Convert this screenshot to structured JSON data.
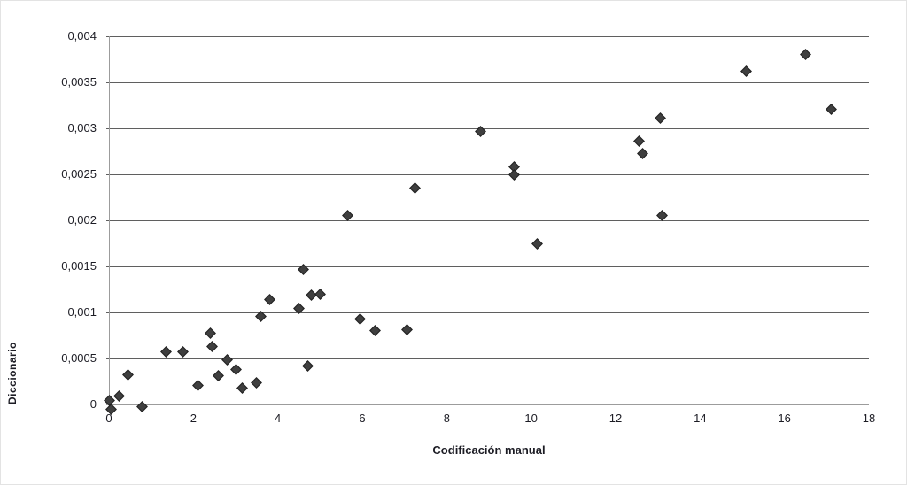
{
  "chart_data": {
    "type": "scatter",
    "title": "",
    "xlabel": "Codificación manual",
    "ylabel": "Diccionario",
    "xlim": [
      0,
      18
    ],
    "ylim": [
      0,
      0.004
    ],
    "x_ticks": [
      0,
      2,
      4,
      6,
      8,
      10,
      12,
      14,
      16,
      18
    ],
    "y_ticks": [
      {
        "value": 0,
        "label": "0"
      },
      {
        "value": 0.0005,
        "label": "0,0005"
      },
      {
        "value": 0.001,
        "label": "0,001"
      },
      {
        "value": 0.0015,
        "label": "0,0015"
      },
      {
        "value": 0.002,
        "label": "0,002"
      },
      {
        "value": 0.0025,
        "label": "0,0025"
      },
      {
        "value": 0.003,
        "label": "0,003"
      },
      {
        "value": 0.0035,
        "label": "0,0035"
      },
      {
        "value": 0.004,
        "label": "0,004"
      }
    ],
    "grid": "horizontal",
    "legend": false,
    "marker": "diamond",
    "marker_color": "#3f3f3f",
    "points": [
      [
        0.0,
        4e-05
      ],
      [
        0.05,
        -5e-05
      ],
      [
        0.25,
        9e-05
      ],
      [
        0.45,
        0.00032
      ],
      [
        0.78,
        -2e-05
      ],
      [
        1.35,
        0.00057
      ],
      [
        1.75,
        0.00057
      ],
      [
        2.1,
        0.00021
      ],
      [
        2.4,
        0.00077
      ],
      [
        2.45,
        0.00063
      ],
      [
        2.6,
        0.00031
      ],
      [
        2.8,
        0.00049
      ],
      [
        3.0,
        0.00038
      ],
      [
        3.15,
        0.00018
      ],
      [
        3.5,
        0.00024
      ],
      [
        3.6,
        0.00096
      ],
      [
        3.8,
        0.00114
      ],
      [
        4.5,
        0.00104
      ],
      [
        4.6,
        0.00147
      ],
      [
        4.7,
        0.00042
      ],
      [
        4.8,
        0.00119
      ],
      [
        5.0,
        0.0012
      ],
      [
        5.65,
        0.00205
      ],
      [
        5.95,
        0.00093
      ],
      [
        6.3,
        0.0008
      ],
      [
        7.05,
        0.00081
      ],
      [
        7.25,
        0.00235
      ],
      [
        8.8,
        0.00297
      ],
      [
        9.6,
        0.00258
      ],
      [
        9.6,
        0.0025
      ],
      [
        10.15,
        0.00175
      ],
      [
        12.55,
        0.00286
      ],
      [
        12.65,
        0.00273
      ],
      [
        13.05,
        0.00311
      ],
      [
        13.1,
        0.00205
      ],
      [
        15.1,
        0.00362
      ],
      [
        16.5,
        0.0038
      ],
      [
        17.1,
        0.00321
      ]
    ],
    "colors": {
      "gridline": "#5f5f5f",
      "axis_line": "#9c9c9c",
      "marker_fill": "#3f3f3f",
      "marker_border": "#1f1f1f",
      "text": "#1c1c24"
    }
  }
}
